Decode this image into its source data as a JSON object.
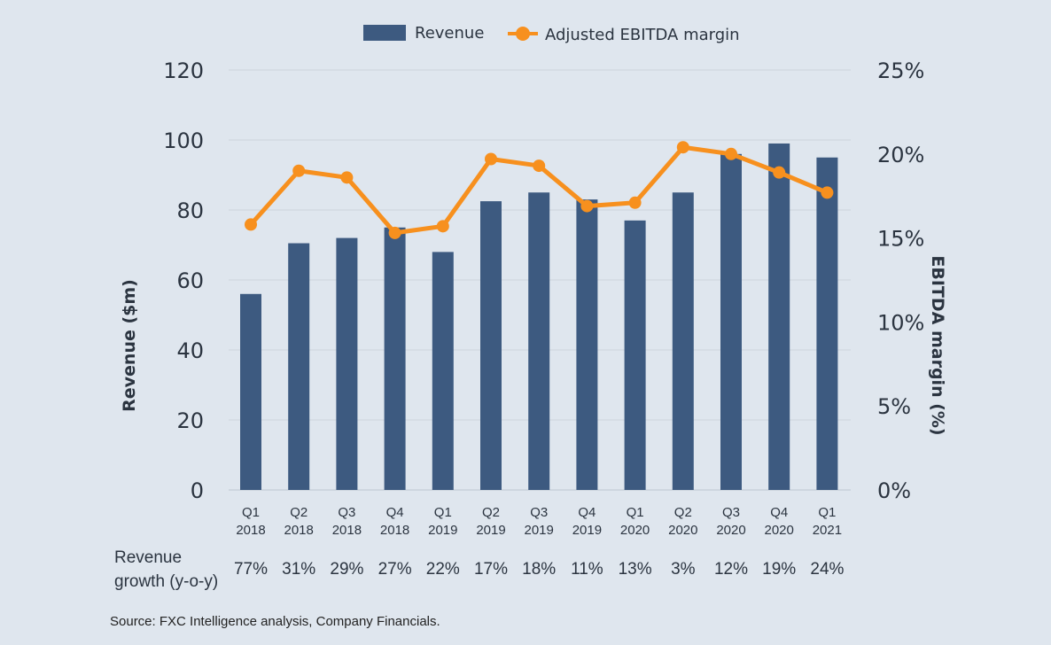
{
  "chart_data": {
    "type": "bar+line",
    "categories": [
      "Q1 2018",
      "Q2 2018",
      "Q3 2018",
      "Q4 2018",
      "Q1 2019",
      "Q2 2019",
      "Q3 2019",
      "Q4 2019",
      "Q1 2020",
      "Q2 2020",
      "Q3 2020",
      "Q4 2020",
      "Q1 2021"
    ],
    "category_lines": [
      [
        "Q1",
        "2018"
      ],
      [
        "Q2",
        "2018"
      ],
      [
        "Q3",
        "2018"
      ],
      [
        "Q4",
        "2018"
      ],
      [
        "Q1",
        "2019"
      ],
      [
        "Q2",
        "2019"
      ],
      [
        "Q3",
        "2019"
      ],
      [
        "Q4",
        "2019"
      ],
      [
        "Q1",
        "2020"
      ],
      [
        "Q2",
        "2020"
      ],
      [
        "Q3",
        "2020"
      ],
      [
        "Q4",
        "2020"
      ],
      [
        "Q1",
        "2021"
      ]
    ],
    "series": [
      {
        "name": "Revenue",
        "type": "bar",
        "axis": "left",
        "color": "#3d5a80",
        "values": [
          56,
          70.5,
          72,
          75,
          68,
          82.5,
          85,
          83,
          77,
          85,
          96,
          99,
          95
        ]
      },
      {
        "name": "Adjusted EBITDA margin",
        "type": "line",
        "axis": "right",
        "color": "#f7901e",
        "values": [
          15.8,
          19.0,
          18.6,
          15.3,
          15.7,
          19.7,
          19.3,
          16.9,
          17.1,
          20.4,
          20.0,
          18.9,
          17.7
        ]
      }
    ],
    "ylabel": "Revenue ($m)",
    "ylabel_right": "EBITDA margin (%)",
    "ylim": [
      0,
      120
    ],
    "ylim_right": [
      0,
      25
    ],
    "yticks": [
      "0",
      "20",
      "40",
      "60",
      "80",
      "100",
      "120"
    ],
    "yticks_right": [
      "0%",
      "5%",
      "10%",
      "15%",
      "20%",
      "25%"
    ],
    "grid": true,
    "legend_position": "top",
    "growth_label": [
      "Revenue",
      "growth (y-o-y)"
    ],
    "growth_values": [
      "77%",
      "31%",
      "29%",
      "27%",
      "22%",
      "17%",
      "18%",
      "11%",
      "13%",
      "3%",
      "12%",
      "19%",
      "24%"
    ]
  },
  "source": "Source: FXC Intelligence analysis, Company Financials."
}
